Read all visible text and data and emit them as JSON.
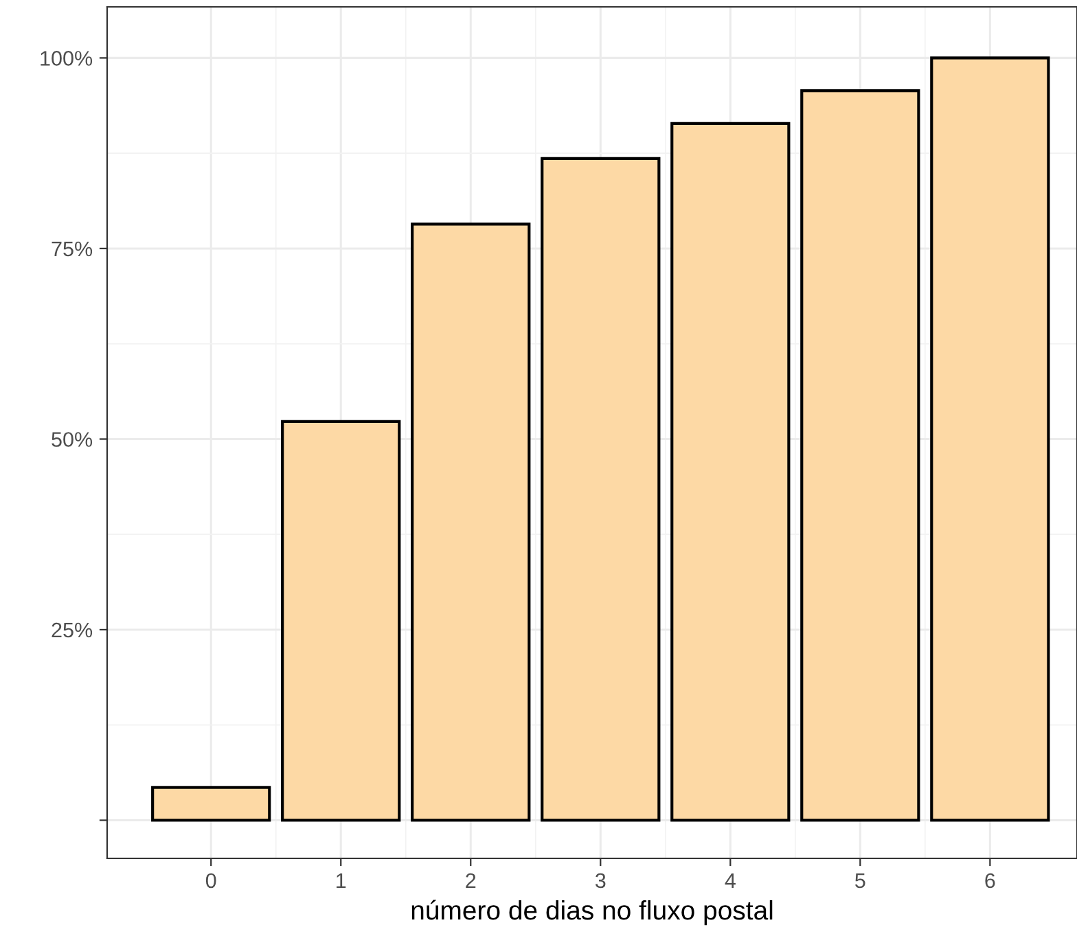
{
  "chart_data": {
    "type": "bar",
    "xlabel": "número de dias no fluxo postal",
    "x": [
      0,
      1,
      2,
      3,
      4,
      5,
      6
    ],
    "values": [
      4.3,
      52.3,
      78.2,
      86.8,
      91.4,
      95.7,
      100
    ],
    "color": "#fdd9a5",
    "xlim": [
      -0.8,
      6.67
    ],
    "xticks": [
      0,
      1,
      2,
      3,
      4,
      5,
      6
    ],
    "ylim": [
      -5,
      106.7
    ],
    "yticks": [
      {
        "value": 0,
        "label": null
      },
      {
        "value": 25,
        "label": "25%"
      },
      {
        "value": 50,
        "label": "50%"
      },
      {
        "value": 75,
        "label": "75%"
      },
      {
        "value": 100,
        "label": "100%"
      }
    ],
    "grid": true
  }
}
